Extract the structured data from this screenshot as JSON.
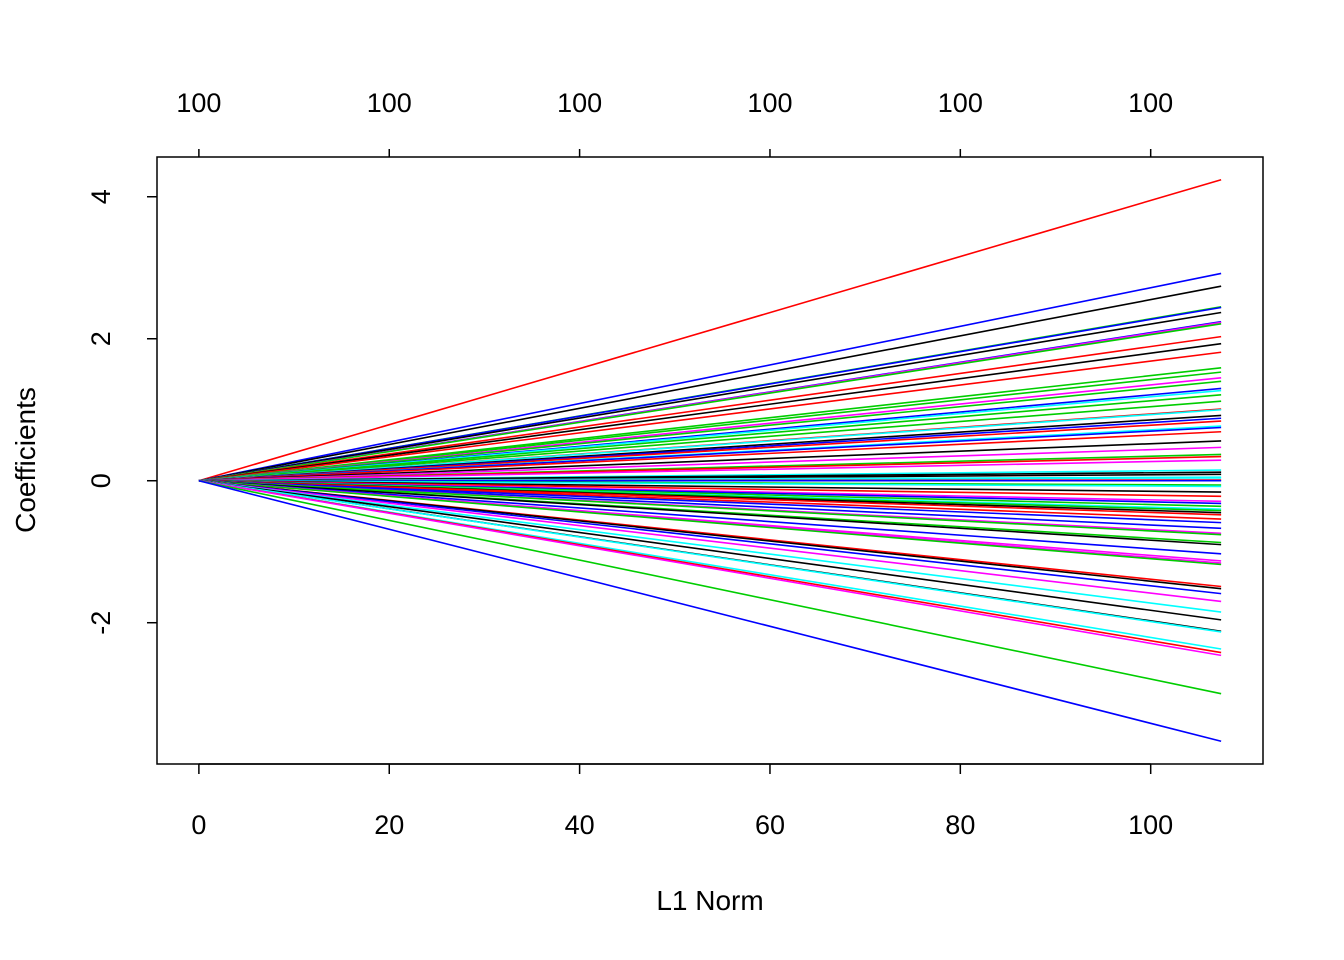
{
  "chart_data": {
    "type": "line",
    "title": "",
    "xlabel": "L1 Norm",
    "ylabel": "Coefficients",
    "xlim": [
      -4.4,
      111.8
    ],
    "ylim": [
      -3.99,
      4.56
    ],
    "x_ticks": [
      0,
      20,
      40,
      60,
      80,
      100
    ],
    "x_tick_labels": [
      "0",
      "20",
      "40",
      "60",
      "80",
      "100"
    ],
    "y_ticks": [
      -2,
      0,
      2,
      4
    ],
    "y_tick_labels": [
      "-2",
      "0",
      "2",
      "4"
    ],
    "top_ticks": [
      0,
      20,
      40,
      60,
      80,
      100
    ],
    "top_tick_labels": [
      "100",
      "100",
      "100",
      "100",
      "100",
      "100"
    ],
    "grid": false,
    "legend": "none",
    "x_start": 0,
    "x_end": 107.4,
    "palette": {
      "black": "#000000",
      "red": "#FF0000",
      "green": "#00CD00",
      "blue": "#0000FF",
      "cyan": "#00FFFF",
      "magenta": "#FF00FF"
    },
    "series": [
      {
        "color": "red",
        "end": 4.24
      },
      {
        "color": "blue",
        "end": 2.92
      },
      {
        "color": "black",
        "end": 2.74
      },
      {
        "color": "green",
        "end": 2.45
      },
      {
        "color": "blue",
        "end": 2.44
      },
      {
        "color": "black",
        "end": 2.37
      },
      {
        "color": "blue",
        "end": 2.24
      },
      {
        "color": "magenta",
        "end": 2.23
      },
      {
        "color": "green",
        "end": 2.21
      },
      {
        "color": "red",
        "end": 2.03
      },
      {
        "color": "black",
        "end": 1.93
      },
      {
        "color": "red",
        "end": 1.81
      },
      {
        "color": "green",
        "end": 1.59
      },
      {
        "color": "green",
        "end": 1.53
      },
      {
        "color": "magenta",
        "end": 1.45
      },
      {
        "color": "green",
        "end": 1.4
      },
      {
        "color": "blue",
        "end": 1.3
      },
      {
        "color": "cyan",
        "end": 1.27
      },
      {
        "color": "green",
        "end": 1.21
      },
      {
        "color": "green",
        "end": 1.12
      },
      {
        "color": "red",
        "end": 1.01
      },
      {
        "color": "cyan",
        "end": 1.0
      },
      {
        "color": "black",
        "end": 0.92
      },
      {
        "color": "blue",
        "end": 0.88
      },
      {
        "color": "red",
        "end": 0.84
      },
      {
        "color": "cyan",
        "end": 0.77
      },
      {
        "color": "blue",
        "end": 0.75
      },
      {
        "color": "red",
        "end": 0.69
      },
      {
        "color": "black",
        "end": 0.56
      },
      {
        "color": "magenta",
        "end": 0.47
      },
      {
        "color": "green",
        "end": 0.37
      },
      {
        "color": "red",
        "end": 0.34
      },
      {
        "color": "magenta",
        "end": 0.29
      },
      {
        "color": "cyan",
        "end": 0.15
      },
      {
        "color": "black",
        "end": 0.12
      },
      {
        "color": "black",
        "end": 0.09
      },
      {
        "color": "cyan",
        "end": 0.05
      },
      {
        "color": "cyan",
        "end": 0.04
      },
      {
        "color": "red",
        "end": 0.01
      },
      {
        "color": "blue",
        "end": 0.0
      },
      {
        "color": "green",
        "end": -0.06
      },
      {
        "color": "cyan",
        "end": -0.08
      },
      {
        "color": "black",
        "end": -0.16
      },
      {
        "color": "red",
        "end": -0.22
      },
      {
        "color": "magenta",
        "end": -0.29
      },
      {
        "color": "blue",
        "end": -0.32
      },
      {
        "color": "green",
        "end": -0.36
      },
      {
        "color": "cyan",
        "end": -0.4
      },
      {
        "color": "green",
        "end": -0.42
      },
      {
        "color": "black",
        "end": -0.45
      },
      {
        "color": "red",
        "end": -0.48
      },
      {
        "color": "red",
        "end": -0.54
      },
      {
        "color": "blue",
        "end": -0.59
      },
      {
        "color": "blue",
        "end": -0.67
      },
      {
        "color": "magenta",
        "end": -0.74
      },
      {
        "color": "green",
        "end": -0.76
      },
      {
        "color": "green",
        "end": -0.87
      },
      {
        "color": "black",
        "end": -0.9
      },
      {
        "color": "blue",
        "end": -1.03
      },
      {
        "color": "magenta",
        "end": -1.13
      },
      {
        "color": "magenta",
        "end": -1.16
      },
      {
        "color": "green",
        "end": -1.18
      },
      {
        "color": "red",
        "end": -1.49
      },
      {
        "color": "black",
        "end": -1.52
      },
      {
        "color": "blue",
        "end": -1.59
      },
      {
        "color": "magenta",
        "end": -1.7
      },
      {
        "color": "cyan",
        "end": -1.85
      },
      {
        "color": "black",
        "end": -1.96
      },
      {
        "color": "black",
        "end": -2.12
      },
      {
        "color": "cyan",
        "end": -2.13
      },
      {
        "color": "cyan",
        "end": -2.37
      },
      {
        "color": "red",
        "end": -2.42
      },
      {
        "color": "magenta",
        "end": -2.46
      },
      {
        "color": "green",
        "end": -3.0
      },
      {
        "color": "blue",
        "end": -3.67
      }
    ]
  }
}
